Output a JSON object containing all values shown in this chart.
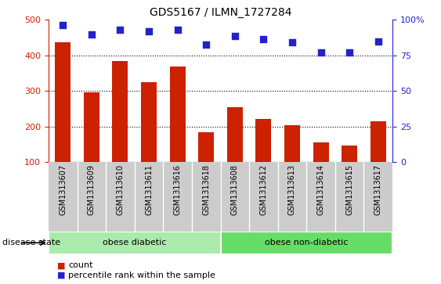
{
  "title": "GDS5167 / ILMN_1727284",
  "samples": [
    "GSM1313607",
    "GSM1313609",
    "GSM1313610",
    "GSM1313611",
    "GSM1313616",
    "GSM1313618",
    "GSM1313608",
    "GSM1313612",
    "GSM1313613",
    "GSM1313614",
    "GSM1313615",
    "GSM1313617"
  ],
  "counts": [
    438,
    295,
    383,
    325,
    368,
    183,
    255,
    220,
    204,
    155,
    145,
    215
  ],
  "percentile_scaled": [
    485,
    460,
    472,
    467,
    472,
    430,
    455,
    445,
    438,
    408,
    408,
    440
  ],
  "ylim_left": [
    100,
    500
  ],
  "yticks_left": [
    100,
    200,
    300,
    400,
    500
  ],
  "right_ticks_pos": [
    100,
    200,
    300,
    400,
    500
  ],
  "right_tick_labels": [
    "0",
    "25",
    "50",
    "75",
    "100%"
  ],
  "grid_lines": [
    200,
    300,
    400
  ],
  "bar_color": "#cc2200",
  "dot_color": "#2222cc",
  "tick_color_left": "#cc2200",
  "tick_color_right": "#2222cc",
  "groups": [
    {
      "label": "obese diabetic",
      "start": 0,
      "end": 6,
      "color": "#aaeaaa"
    },
    {
      "label": "obese non-diabetic",
      "start": 6,
      "end": 12,
      "color": "#66dd66"
    }
  ],
  "group_border_color": "#ffffff",
  "disease_state_label": "disease state",
  "legend_count": "count",
  "legend_percentile": "percentile rank within the sample",
  "xlabel_bg_color": "#cccccc",
  "bg_color": "#ffffff",
  "bar_bottom": 100
}
